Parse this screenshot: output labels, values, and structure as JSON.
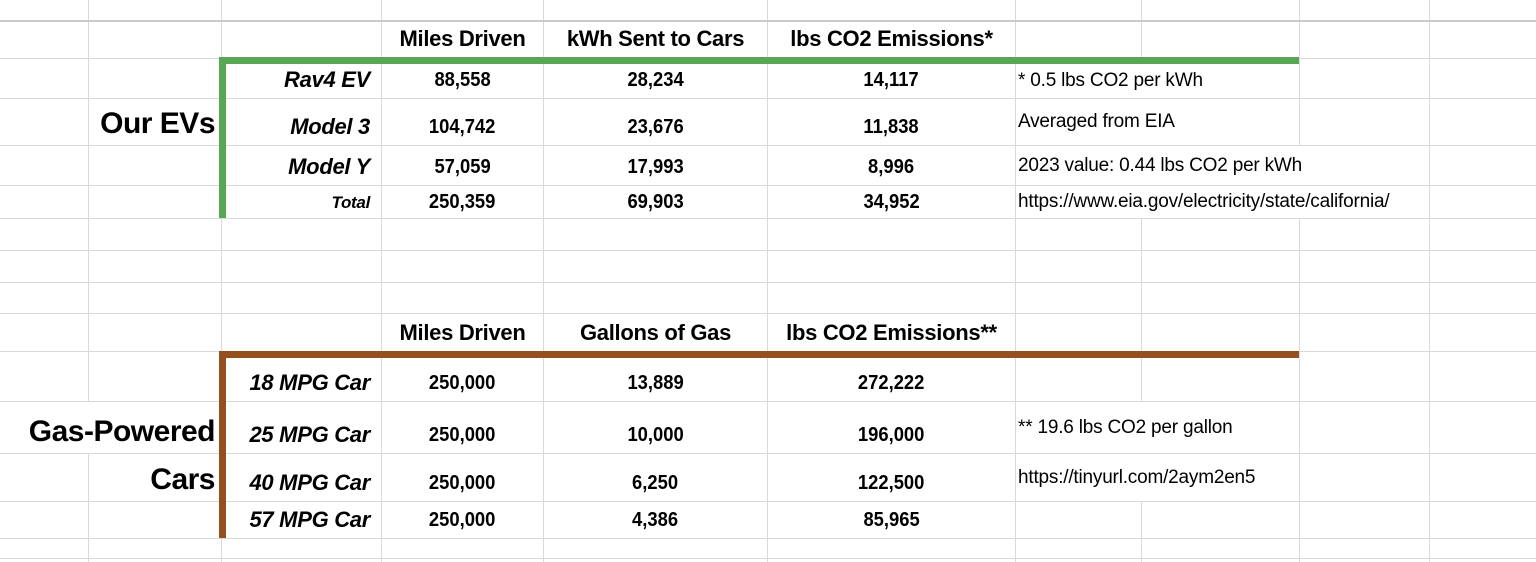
{
  "colors": {
    "green_border": "#57a757",
    "brown_border": "#955020",
    "gridline": "#d9d9d9",
    "gridline_strong": "#c9c9c9"
  },
  "ev_table": {
    "group_label": "Our EVs",
    "headers": [
      "Miles Driven",
      "kWh Sent to Cars",
      "lbs CO2 Emissions*"
    ],
    "rows": [
      {
        "label": "Rav4 EV",
        "miles": "88,558",
        "kwh": "28,234",
        "co2": "14,117"
      },
      {
        "label": "Model 3",
        "miles": "104,742",
        "kwh": "23,676",
        "co2": "11,838"
      },
      {
        "label": "Model Y",
        "miles": "57,059",
        "kwh": "17,993",
        "co2": "8,996"
      },
      {
        "label": "Total",
        "miles": "250,359",
        "kwh": "69,903",
        "co2": "34,952"
      }
    ],
    "notes": [
      "* 0.5 lbs CO2 per kWh",
      "Averaged from EIA",
      "2023 value: 0.44 lbs CO2 per kWh",
      "https://www.eia.gov/electricity/state/california/"
    ]
  },
  "gas_table": {
    "group_label_line1": "Gas-Powered",
    "group_label_line2": "Cars",
    "headers": [
      "Miles Driven",
      "Gallons of Gas",
      "lbs CO2 Emissions**"
    ],
    "rows": [
      {
        "label": "18 MPG Car",
        "miles": "250,000",
        "gallons": "13,889",
        "co2": "272,222"
      },
      {
        "label": "25 MPG Car",
        "miles": "250,000",
        "gallons": "10,000",
        "co2": "196,000"
      },
      {
        "label": "40 MPG Car",
        "miles": "250,000",
        "gallons": "6,250",
        "co2": "122,500"
      },
      {
        "label": "57 MPG Car",
        "miles": "250,000",
        "gallons": "4,386",
        "co2": "85,965"
      }
    ],
    "notes": [
      "** 19.6 lbs CO2 per gallon",
      "https://tinyurl.com/2aym2en5"
    ]
  }
}
